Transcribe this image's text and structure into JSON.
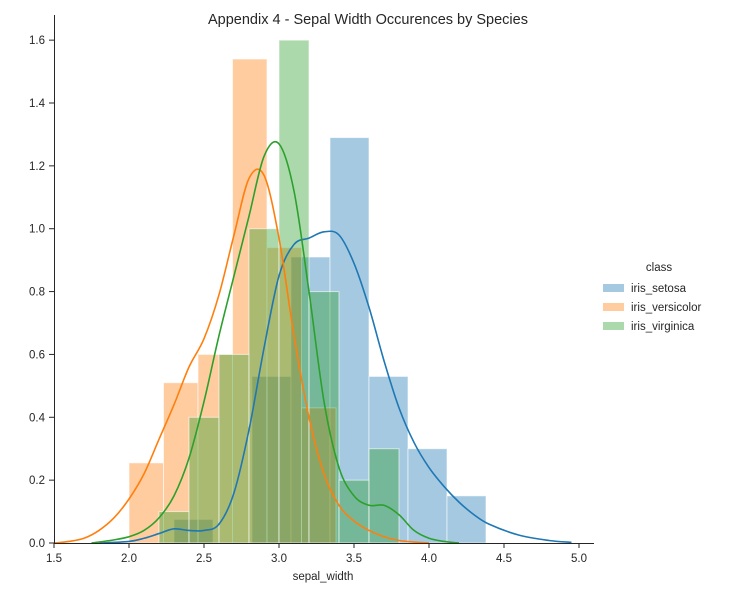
{
  "chart_data": {
    "type": "bar",
    "title": "Appendix 4 - Sepal Width Occurences by Species",
    "xlabel": "sepal_width",
    "ylabel": "",
    "xlim": [
      1.5,
      5.1
    ],
    "ylim": [
      0,
      1.68
    ],
    "x_ticks": [
      "1.5",
      "2.0",
      "2.5",
      "3.0",
      "3.5",
      "4.0",
      "4.5",
      "5.0"
    ],
    "y_ticks": [
      "0.0",
      "0.2",
      "0.4",
      "0.6",
      "0.8",
      "1.0",
      "1.2",
      "1.4",
      "1.6"
    ],
    "grid": false,
    "legend": {
      "title": "class",
      "placement": "center-right"
    },
    "series": [
      {
        "name": "iris_setosa",
        "color": "#1f77b4",
        "histogram": [
          {
            "x0": 2.3,
            "x1": 2.56,
            "y": 0.075
          },
          {
            "x0": 2.56,
            "x1": 2.82,
            "y": 0.0
          },
          {
            "x0": 2.82,
            "x1": 3.08,
            "y": 0.53
          },
          {
            "x0": 3.08,
            "x1": 3.34,
            "y": 0.91
          },
          {
            "x0": 3.34,
            "x1": 3.6,
            "y": 1.29
          },
          {
            "x0": 3.6,
            "x1": 3.86,
            "y": 0.53
          },
          {
            "x0": 3.86,
            "x1": 4.12,
            "y": 0.3
          },
          {
            "x0": 4.12,
            "x1": 4.38,
            "y": 0.15
          }
        ],
        "kde": {
          "x": [
            1.8,
            2.0,
            2.1,
            2.2,
            2.3,
            2.4,
            2.5,
            2.6,
            2.7,
            2.8,
            2.9,
            3.0,
            3.1,
            3.2,
            3.3,
            3.4,
            3.5,
            3.6,
            3.7,
            3.8,
            3.9,
            4.0,
            4.1,
            4.2,
            4.3,
            4.4,
            4.6,
            4.8,
            4.95
          ],
          "y": [
            0.0,
            0.005,
            0.015,
            0.03,
            0.045,
            0.04,
            0.04,
            0.06,
            0.16,
            0.36,
            0.62,
            0.85,
            0.95,
            0.97,
            0.99,
            0.98,
            0.89,
            0.75,
            0.58,
            0.43,
            0.32,
            0.24,
            0.18,
            0.13,
            0.09,
            0.06,
            0.025,
            0.008,
            0.002
          ]
        }
      },
      {
        "name": "iris_versicolor",
        "color": "#ff7f0e",
        "histogram": [
          {
            "x0": 2.0,
            "x1": 2.23,
            "y": 0.255
          },
          {
            "x0": 2.23,
            "x1": 2.46,
            "y": 0.51
          },
          {
            "x0": 2.46,
            "x1": 2.69,
            "y": 0.6
          },
          {
            "x0": 2.69,
            "x1": 2.92,
            "y": 1.54
          },
          {
            "x0": 2.92,
            "x1": 3.15,
            "y": 0.94
          },
          {
            "x0": 3.15,
            "x1": 3.38,
            "y": 0.43
          }
        ],
        "kde": {
          "x": [
            1.5,
            1.6,
            1.7,
            1.8,
            1.9,
            2.0,
            2.1,
            2.2,
            2.3,
            2.4,
            2.5,
            2.6,
            2.7,
            2.8,
            2.9,
            3.0,
            3.1,
            3.2,
            3.3,
            3.4,
            3.5,
            3.6,
            3.7,
            3.8,
            3.9,
            4.0
          ],
          "y": [
            0.0,
            0.005,
            0.015,
            0.04,
            0.08,
            0.14,
            0.22,
            0.33,
            0.44,
            0.56,
            0.65,
            0.79,
            0.98,
            1.16,
            1.17,
            0.97,
            0.66,
            0.4,
            0.22,
            0.12,
            0.07,
            0.04,
            0.02,
            0.008,
            0.003,
            0.0
          ]
        }
      },
      {
        "name": "iris_virginica",
        "color": "#2ca02c",
        "histogram": [
          {
            "x0": 2.2,
            "x1": 2.4,
            "y": 0.1
          },
          {
            "x0": 2.4,
            "x1": 2.6,
            "y": 0.4
          },
          {
            "x0": 2.6,
            "x1": 2.8,
            "y": 0.6
          },
          {
            "x0": 2.8,
            "x1": 3.0,
            "y": 1.0
          },
          {
            "x0": 3.0,
            "x1": 3.2,
            "y": 1.6
          },
          {
            "x0": 3.2,
            "x1": 3.4,
            "y": 0.8
          },
          {
            "x0": 3.4,
            "x1": 3.6,
            "y": 0.2
          },
          {
            "x0": 3.6,
            "x1": 3.8,
            "y": 0.3
          }
        ],
        "kde": {
          "x": [
            1.75,
            1.9,
            2.0,
            2.1,
            2.2,
            2.3,
            2.4,
            2.5,
            2.6,
            2.7,
            2.8,
            2.9,
            3.0,
            3.1,
            3.2,
            3.3,
            3.4,
            3.5,
            3.6,
            3.7,
            3.8,
            3.9,
            4.0,
            4.1,
            4.2
          ],
          "y": [
            0.0,
            0.01,
            0.02,
            0.04,
            0.08,
            0.15,
            0.27,
            0.45,
            0.66,
            0.85,
            1.04,
            1.23,
            1.27,
            1.12,
            0.8,
            0.45,
            0.24,
            0.15,
            0.12,
            0.12,
            0.09,
            0.04,
            0.015,
            0.005,
            0.0
          ]
        }
      }
    ]
  }
}
